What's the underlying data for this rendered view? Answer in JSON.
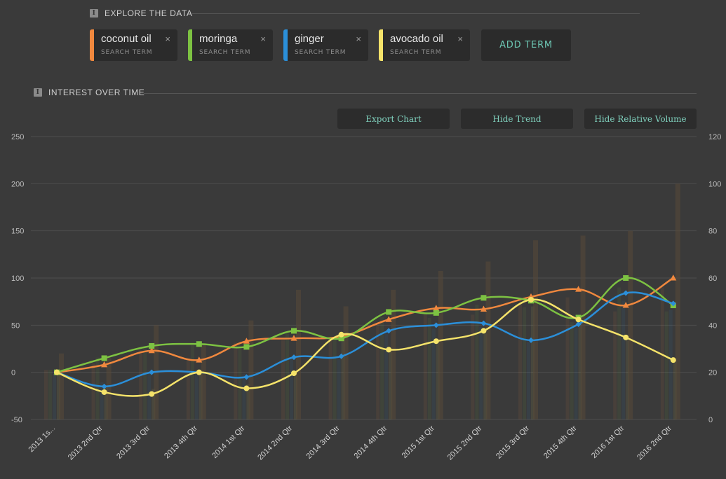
{
  "explore": {
    "heading": "EXPLORE THE DATA",
    "terms": [
      {
        "label": "coconut oil",
        "sub": "SEARCH TERM",
        "color": "#f0883e"
      },
      {
        "label": "moringa",
        "sub": "SEARCH TERM",
        "color": "#7dc242"
      },
      {
        "label": "ginger",
        "sub": "SEARCH TERM",
        "color": "#2b8fd9"
      },
      {
        "label": "avocado oil",
        "sub": "SEARCH TERM",
        "color": "#f5e36a"
      }
    ],
    "close_icon": "×",
    "add_term_label": "ADD TERM"
  },
  "interest": {
    "heading": "INTEREST OVER TIME",
    "buttons": {
      "export": "Export Chart",
      "hide_trend": "Hide Trend",
      "hide_volume": "Hide Relative Volume"
    }
  },
  "chart_data": {
    "type": "line",
    "categories": [
      "2013 1s...",
      "2013 2nd Qtr",
      "2013 3rd Qtr",
      "2013 4th Qtr",
      "2014 1st Qtr",
      "2014 2nd Qtr",
      "2014 3rd Qtr",
      "2014 4th Qtr",
      "2015 1st Qtr",
      "2015 2nd Qtr",
      "2015 3rd Qtr",
      "2015 4th Qtr",
      "2016 1st Qtr",
      "2016 2nd Qtr"
    ],
    "y_left": {
      "ticks": [
        250,
        200,
        150,
        100,
        50,
        0,
        -50
      ],
      "range": [
        -50,
        250
      ]
    },
    "y_right": {
      "ticks": [
        120,
        100,
        80,
        60,
        40,
        20,
        0
      ],
      "range": [
        0,
        120
      ]
    },
    "grid": true,
    "series": [
      {
        "name": "coconut oil",
        "color": "#f0883e",
        "marker": "triangle",
        "values": [
          0,
          8,
          23,
          13,
          33,
          36,
          38,
          56,
          68,
          67,
          80,
          88,
          71,
          100
        ]
      },
      {
        "name": "moringa",
        "color": "#7dc242",
        "marker": "square",
        "values": [
          0,
          15,
          28,
          30,
          27,
          44,
          36,
          64,
          63,
          79,
          76,
          58,
          100,
          71
        ]
      },
      {
        "name": "ginger",
        "color": "#2b8fd9",
        "marker": "diamond",
        "values": [
          0,
          -15,
          0,
          0,
          -5,
          16,
          17,
          44,
          50,
          52,
          34,
          51,
          84,
          73
        ]
      },
      {
        "name": "avocado oil",
        "color": "#f5e36a",
        "marker": "circle",
        "values": [
          0,
          -21,
          -23,
          0,
          -17,
          -1,
          40,
          24,
          33,
          44,
          77,
          56,
          37,
          13
        ]
      }
    ],
    "volume_bars": {
      "axis": "right",
      "color": "#574838",
      "values": [
        28,
        26,
        40,
        32,
        42,
        55,
        48,
        55,
        63,
        67,
        76,
        78,
        80,
        100
      ]
    }
  }
}
